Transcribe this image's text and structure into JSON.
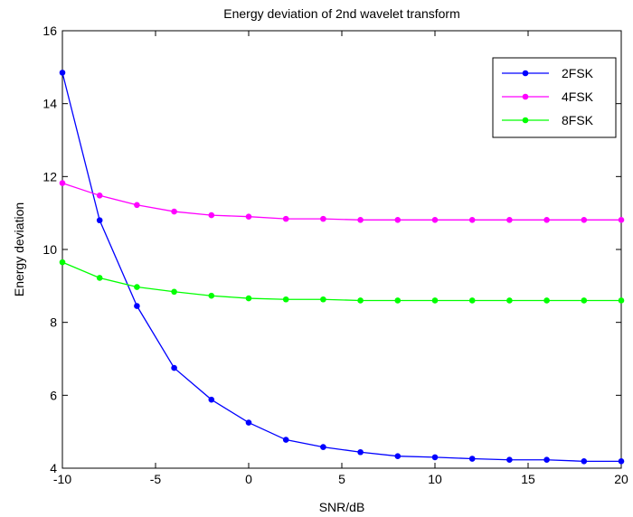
{
  "chart_data": {
    "type": "line",
    "title": "Energy deviation of 2nd wavelet transform",
    "xlabel": "SNR/dB",
    "ylabel": "Energy deviation",
    "xlim": [
      -10,
      20
    ],
    "ylim": [
      4,
      16
    ],
    "xticks": [
      -10,
      -5,
      0,
      5,
      10,
      15,
      20
    ],
    "yticks": [
      4,
      6,
      8,
      10,
      12,
      14,
      16
    ],
    "grid": false,
    "legend_position": "top-right",
    "x": [
      -10,
      -8,
      -6,
      -4,
      -2,
      0,
      2,
      4,
      6,
      8,
      10,
      12,
      14,
      16,
      18,
      20
    ],
    "series": [
      {
        "name": "2FSK",
        "color": "#0000ff",
        "values": [
          14.85,
          10.8,
          8.45,
          6.75,
          5.88,
          5.25,
          4.78,
          4.58,
          4.44,
          4.33,
          4.3,
          4.26,
          4.23,
          4.23,
          4.19,
          4.19
        ]
      },
      {
        "name": "4FSK",
        "color": "#ff00ff",
        "values": [
          11.82,
          11.48,
          11.22,
          11.04,
          10.94,
          10.9,
          10.84,
          10.84,
          10.81,
          10.81,
          10.81,
          10.81,
          10.81,
          10.81,
          10.81,
          10.81
        ]
      },
      {
        "name": "8FSK",
        "color": "#00ff00",
        "values": [
          9.65,
          9.22,
          8.97,
          8.84,
          8.73,
          8.66,
          8.63,
          8.63,
          8.6,
          8.6,
          8.6,
          8.6,
          8.6,
          8.6,
          8.6,
          8.6
        ]
      }
    ]
  }
}
